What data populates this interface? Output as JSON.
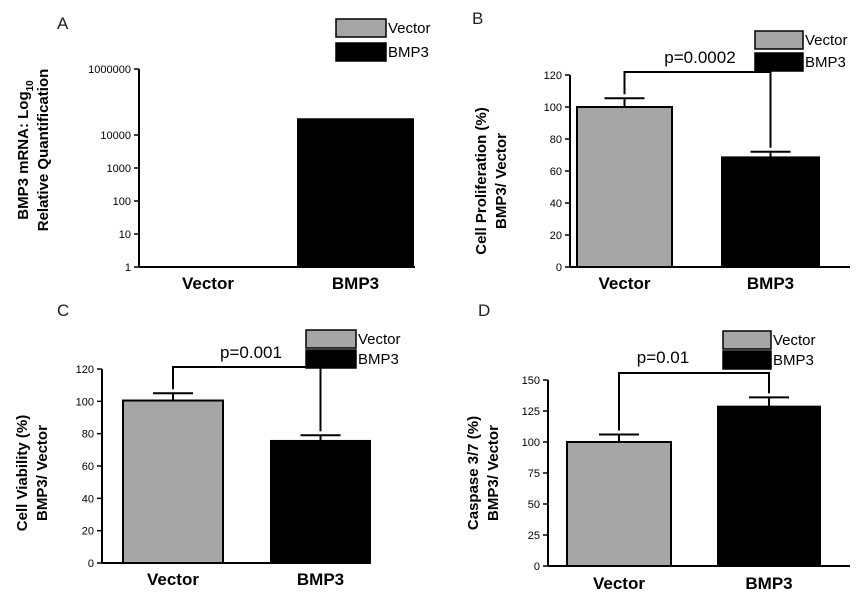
{
  "colors": {
    "vector": "#a6a6a6",
    "bmp3": "#000000",
    "axis": "#000000"
  },
  "chart_data": [
    {
      "panel": "A",
      "type": "bar",
      "scale": "log",
      "categories": [
        "Vector",
        "BMP3"
      ],
      "series": [
        {
          "values": [
            1,
            30000
          ]
        }
      ],
      "ylabel_line1": "BMP3 mRNA: Log",
      "ylabel_sub": "10",
      "ylabel_line2": "Relative Quantification",
      "ylim": [
        1,
        1000000
      ],
      "yticks": [
        1,
        10,
        100,
        1000,
        10000,
        1000000
      ],
      "ytick_labels": [
        "1",
        "10",
        "100",
        "1000",
        "10000",
        "1000000"
      ],
      "legend": [
        "Vector",
        "BMP3"
      ],
      "legend_position": "top-right",
      "grid": false
    },
    {
      "panel": "B",
      "type": "bar",
      "categories": [
        "Vector",
        "BMP3"
      ],
      "series": [
        {
          "values": [
            100,
            68.5
          ],
          "errors": [
            5.5,
            3.5
          ]
        }
      ],
      "ylabel_line1": "Cell Proliferation (%)",
      "ylabel_line2": "BMP3/ Vector",
      "ylim": [
        0,
        120
      ],
      "yticks": [
        0,
        20,
        40,
        60,
        80,
        100,
        120
      ],
      "pvalue": "p=0.0002",
      "legend": [
        "Vector",
        "BMP3"
      ],
      "legend_position": "top-right",
      "grid": false
    },
    {
      "panel": "C",
      "type": "bar",
      "categories": [
        "Vector",
        "BMP3"
      ],
      "series": [
        {
          "values": [
            100.5,
            75.5
          ],
          "errors": [
            4.5,
            3.5
          ]
        }
      ],
      "ylabel_line1": "Cell Viability (%)",
      "ylabel_line2": "BMP3/ Vector",
      "ylim": [
        0,
        120
      ],
      "yticks": [
        0,
        20,
        40,
        60,
        80,
        100,
        120
      ],
      "pvalue": "p=0.001",
      "legend": [
        "Vector",
        "BMP3"
      ],
      "legend_position": "top-right",
      "grid": false
    },
    {
      "panel": "D",
      "type": "bar",
      "categories": [
        "Vector",
        "BMP3"
      ],
      "series": [
        {
          "values": [
            100,
            128.5
          ],
          "errors": [
            6,
            7.5
          ]
        }
      ],
      "ylabel_line1": "Caspase 3/7 (%)",
      "ylabel_line2": "BMP3/ Vector",
      "ylim": [
        0,
        150
      ],
      "yticks": [
        0,
        25,
        50,
        75,
        100,
        125,
        150
      ],
      "pvalue": "p=0.01",
      "legend": [
        "Vector",
        "BMP3"
      ],
      "legend_position": "top-right",
      "grid": false
    }
  ]
}
